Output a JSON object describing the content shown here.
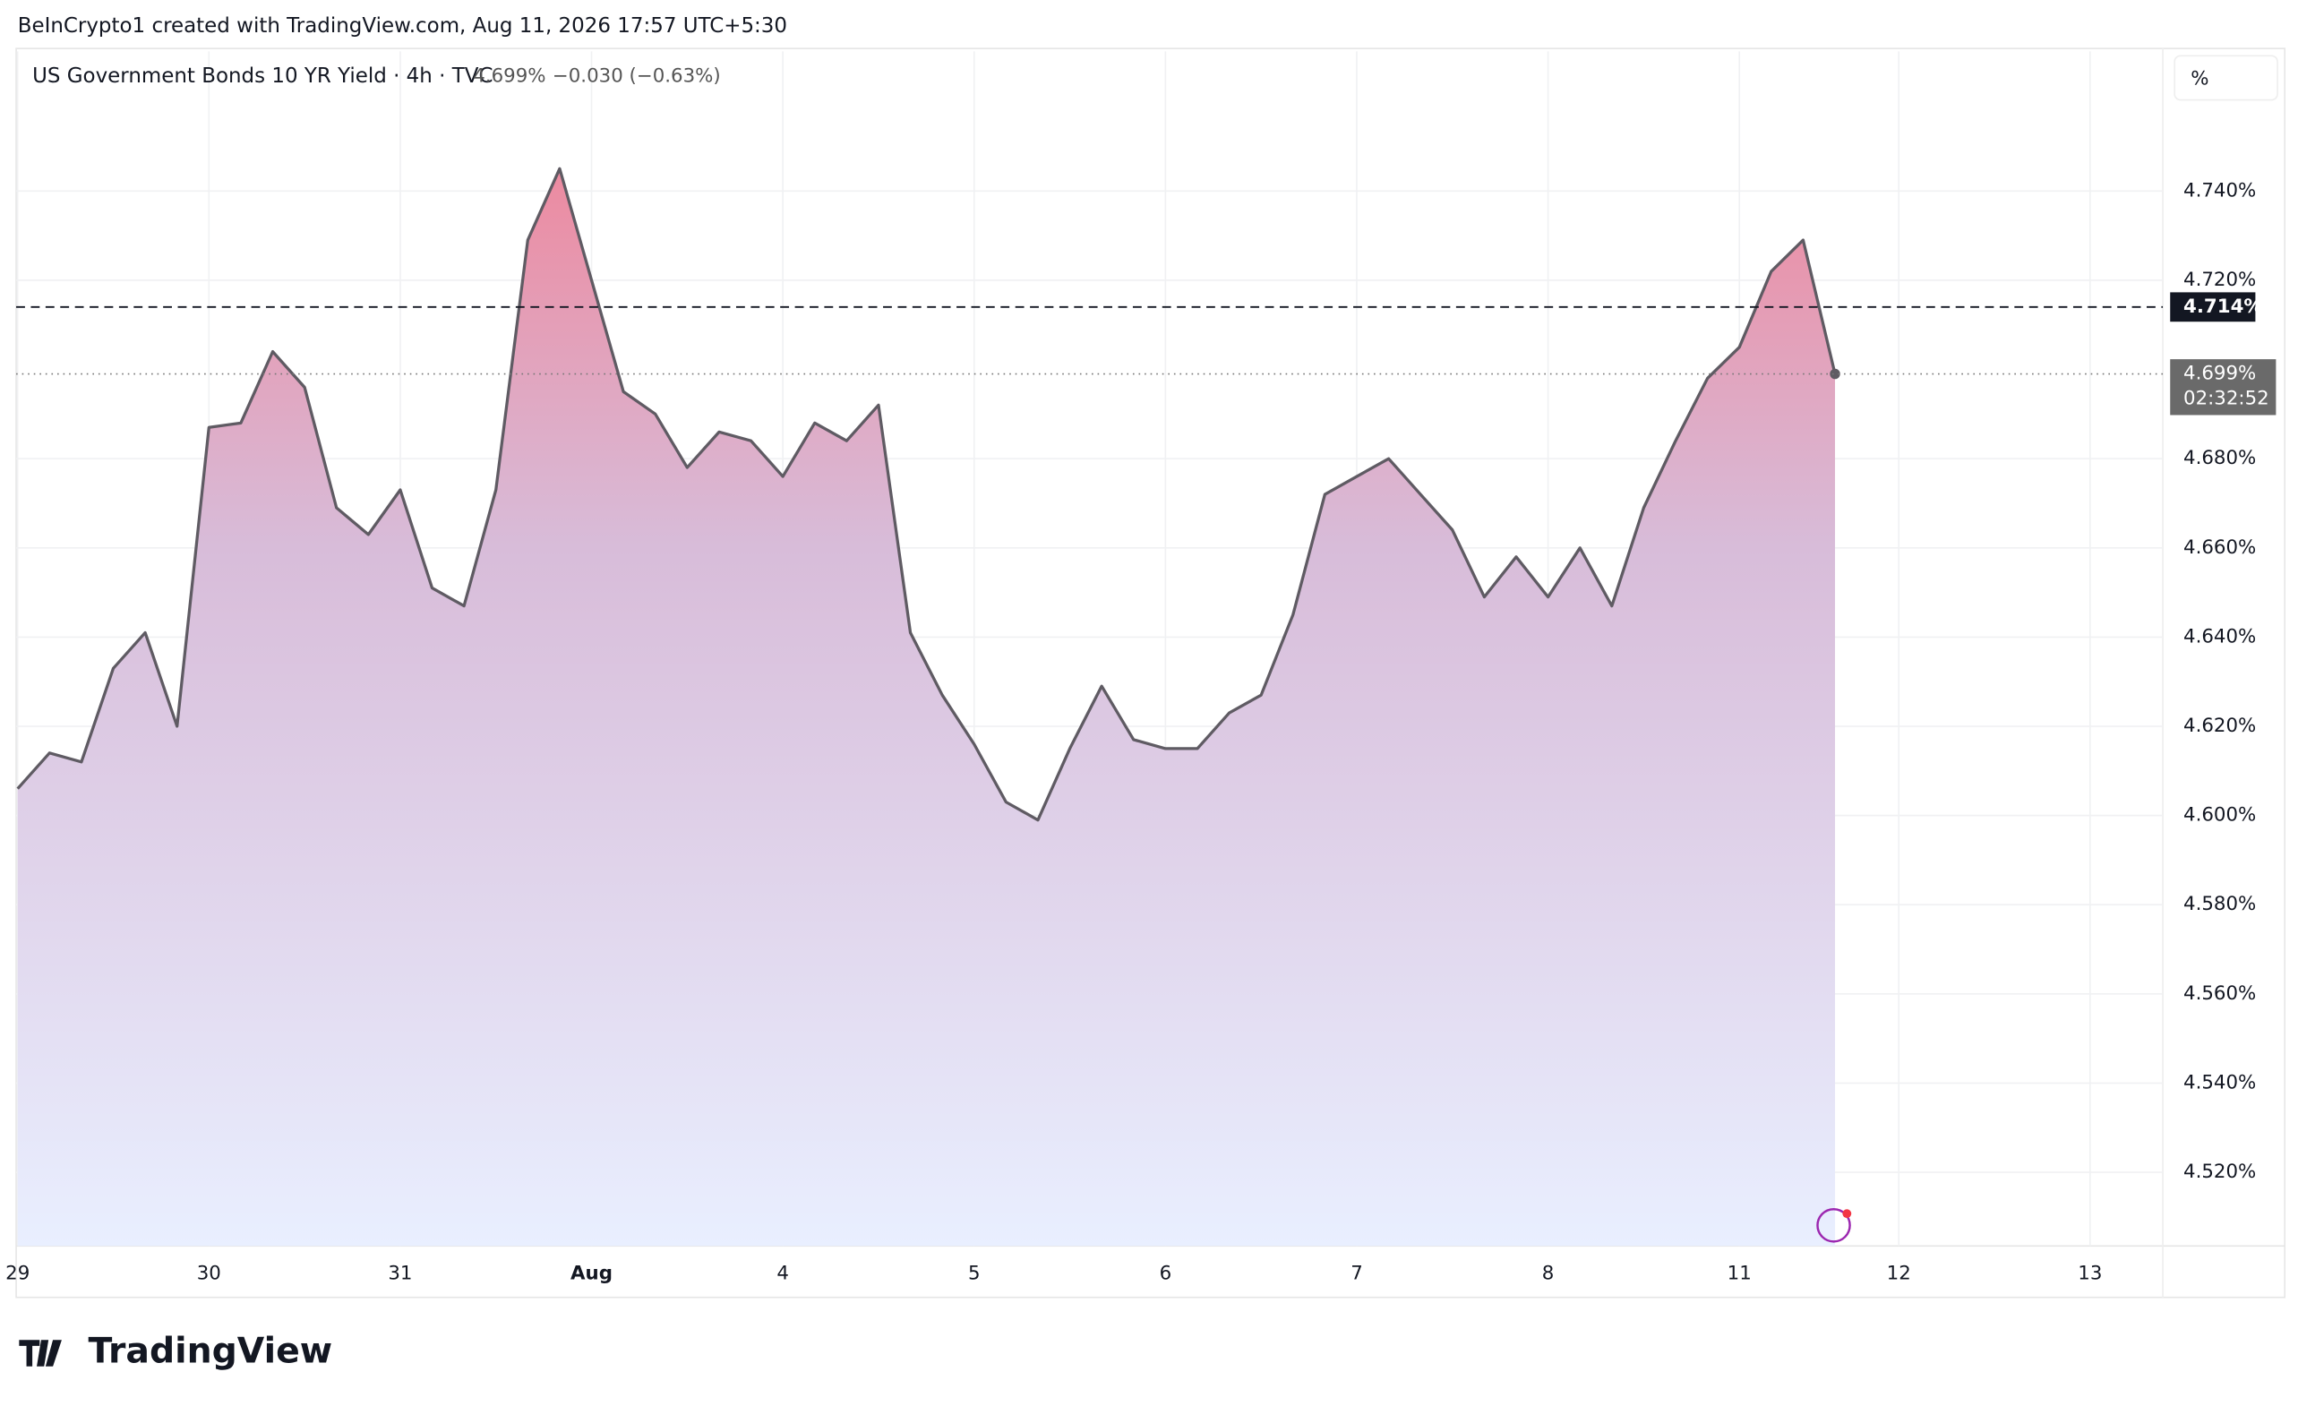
{
  "header": "BeInCrypto1 created with TradingView.com, Aug 11, 2026 17:57 UTC+5:30",
  "footer_logo": "TradingView",
  "scale_button": "%",
  "chart_data": {
    "type": "area",
    "title": "US Government Bonds 10 YR Yield · 4h · TVC",
    "last_value_label": "4.699%",
    "change_label": "−0.030 (−0.63%)",
    "countdown": "02:32:52",
    "reference_line": {
      "value": 4.714,
      "label": "4.714%"
    },
    "last_line": {
      "value": 4.699,
      "label": "4.699%"
    },
    "categories": [
      "29",
      null,
      null,
      null,
      null,
      null,
      "30",
      null,
      null,
      null,
      null,
      null,
      "31",
      null,
      null,
      null,
      null,
      null,
      "Aug",
      null,
      null,
      null,
      null,
      null,
      "4",
      null,
      null,
      null,
      null,
      null,
      "5",
      null,
      null,
      null,
      null,
      null,
      "6",
      null,
      null,
      null,
      null,
      null,
      "7",
      null,
      null,
      null,
      null,
      null,
      "8",
      null,
      null,
      null,
      null,
      null,
      "11",
      null,
      null,
      null,
      null,
      "12",
      null,
      null,
      null,
      null,
      null,
      "13"
    ],
    "values": [
      4.606,
      4.614,
      4.612,
      4.633,
      4.641,
      4.62,
      4.687,
      4.688,
      4.704,
      4.696,
      4.669,
      4.663,
      4.673,
      4.651,
      4.647,
      4.673,
      4.729,
      4.745,
      4.72,
      4.695,
      4.69,
      4.678,
      4.686,
      4.684,
      4.676,
      4.688,
      4.684,
      4.692,
      4.641,
      4.627,
      4.616,
      4.603,
      4.599,
      4.615,
      4.629,
      4.617,
      4.615,
      4.615,
      4.623,
      4.627,
      4.645,
      4.672,
      4.676,
      4.68,
      4.672,
      4.664,
      4.649,
      4.658,
      4.649,
      4.66,
      4.647,
      4.669,
      4.684,
      4.698,
      4.705,
      4.722,
      4.729,
      4.699,
      null,
      null,
      null,
      null,
      null,
      null,
      null,
      null
    ],
    "color": "#5f5b63",
    "ylim": [
      4.5035,
      4.7713
    ],
    "yticks": [
      {
        "value": 4.52,
        "label": "4.520%"
      },
      {
        "value": 4.54,
        "label": "4.540%"
      },
      {
        "value": 4.56,
        "label": "4.560%"
      },
      {
        "value": 4.58,
        "label": "4.580%"
      },
      {
        "value": 4.6,
        "label": "4.600%"
      },
      {
        "value": 4.62,
        "label": "4.620%"
      },
      {
        "value": 4.64,
        "label": "4.640%"
      },
      {
        "value": 4.66,
        "label": "4.660%"
      },
      {
        "value": 4.68,
        "label": "4.680%"
      },
      {
        "value": 4.72,
        "label": "4.720%"
      },
      {
        "value": 4.74,
        "label": "4.740%"
      }
    ],
    "grid": true
  }
}
